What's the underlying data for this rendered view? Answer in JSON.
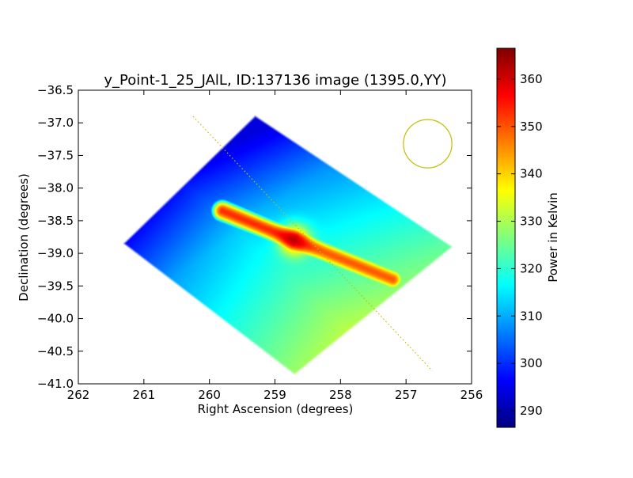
{
  "chart_data": {
    "type": "heatmap",
    "title": "y_Point-1_25_JAlL, ID:137136 image (1395.0,YY)",
    "xlabel": "Right Ascension (degrees)",
    "ylabel": "Declination (degrees)",
    "xlim": [
      262,
      256
    ],
    "ylim": [
      -41.0,
      -36.5
    ],
    "x_ticks": [
      "262",
      "261",
      "260",
      "259",
      "258",
      "257",
      "256"
    ],
    "x_tick_values": [
      262,
      261,
      260,
      259,
      258,
      257,
      256
    ],
    "y_ticks": [
      "−36.5",
      "−37.0",
      "−37.5",
      "−38.0",
      "−38.5",
      "−39.0",
      "−39.5",
      "−40.0",
      "−40.5",
      "−41.0"
    ],
    "y_tick_values": [
      -36.5,
      -37.0,
      -37.5,
      -38.0,
      -38.5,
      -39.0,
      -39.5,
      -40.0,
      -40.5,
      -41.0
    ],
    "colorbar": {
      "label": "Power in Kelvin",
      "range": [
        286.5,
        366.5
      ],
      "ticks": [
        "290",
        "300",
        "310",
        "320",
        "330",
        "340",
        "350",
        "360"
      ],
      "tick_values": [
        290,
        300,
        310,
        320,
        330,
        340,
        350,
        360
      ],
      "colormap": "jet"
    },
    "map_region": {
      "shape": "diamond",
      "vertices_radec": [
        [
          259.3,
          -36.9
        ],
        [
          256.3,
          -38.9
        ],
        [
          258.7,
          -40.85
        ],
        [
          261.3,
          -38.85
        ]
      ]
    },
    "field_values": {
      "hotspot_peak": {
        "ra": 258.7,
        "dec": -38.8,
        "value": 365
      },
      "peak_lobe_nw": {
        "ra": 259.5,
        "dec": -38.4,
        "value": 356
      },
      "peak_lobe_se": {
        "ra": 257.8,
        "dec": -39.3,
        "value": 352
      },
      "north_tip": {
        "ra": 258.8,
        "dec": -37.1,
        "value": 298
      },
      "west_corner": {
        "ra": 261.1,
        "dec": -38.9,
        "value": 297
      },
      "east_corner": {
        "ra": 256.4,
        "dec": -38.9,
        "value": 310
      },
      "south_tip": {
        "ra": 258.7,
        "dec": -40.7,
        "value": 322
      }
    },
    "overlays": {
      "scan_line": {
        "from": [
          260.25,
          -36.9
        ],
        "to": [
          256.6,
          -40.8
        ],
        "color": "#bfbf00",
        "style": "dotted"
      },
      "beam_circle": {
        "center": [
          256.67,
          -37.32
        ],
        "radius_deg": 0.37,
        "color": "#bfbf00"
      }
    }
  }
}
